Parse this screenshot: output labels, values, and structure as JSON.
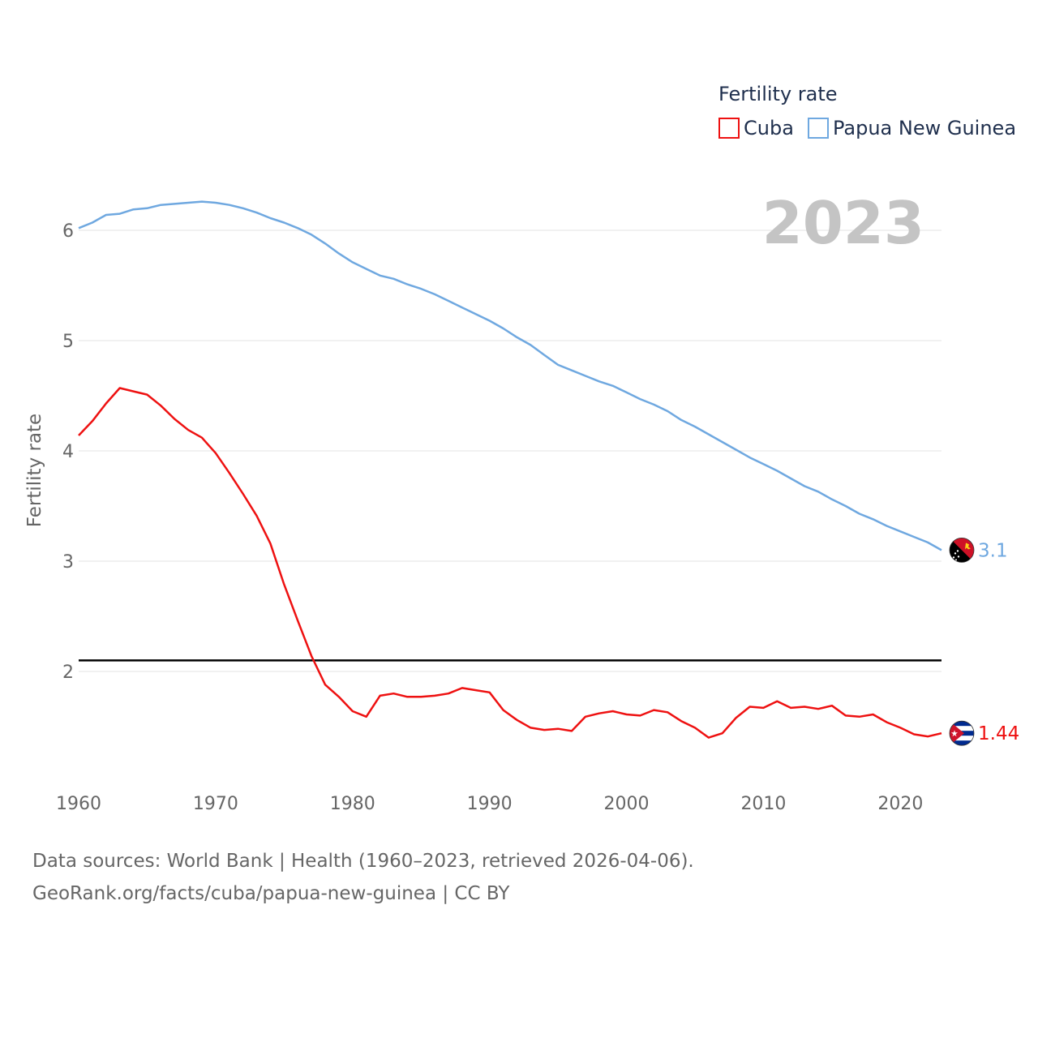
{
  "chart_data": {
    "type": "line",
    "title": "Fertility rate",
    "ylabel": "Fertility rate",
    "xlabel": "",
    "year_display": "2023",
    "xlim": [
      1960,
      2023
    ],
    "ylim": [
      1.0,
      6.5
    ],
    "x_ticks": [
      1960,
      1970,
      1980,
      1990,
      2000,
      2010,
      2020
    ],
    "y_ticks": [
      2,
      3,
      4,
      5,
      6
    ],
    "grid": true,
    "legend_position": "top-right",
    "reference_line": {
      "value": 2.1,
      "color": "#000000"
    },
    "x": [
      1960,
      1961,
      1962,
      1963,
      1964,
      1965,
      1966,
      1967,
      1968,
      1969,
      1970,
      1971,
      1972,
      1973,
      1974,
      1975,
      1976,
      1977,
      1978,
      1979,
      1980,
      1981,
      1982,
      1983,
      1984,
      1985,
      1986,
      1987,
      1988,
      1989,
      1990,
      1991,
      1992,
      1993,
      1994,
      1995,
      1996,
      1997,
      1998,
      1999,
      2000,
      2001,
      2002,
      2003,
      2004,
      2005,
      2006,
      2007,
      2008,
      2009,
      2010,
      2011,
      2012,
      2013,
      2014,
      2015,
      2016,
      2017,
      2018,
      2019,
      2020,
      2021,
      2022,
      2023
    ],
    "series": [
      {
        "name": "Cuba",
        "color": "#ee1111",
        "end_label": "1.44",
        "flag": "cuba-flag-icon",
        "values": [
          4.14,
          4.27,
          4.43,
          4.57,
          4.54,
          4.51,
          4.41,
          4.29,
          4.19,
          4.12,
          3.98,
          3.8,
          3.61,
          3.41,
          3.16,
          2.79,
          2.46,
          2.14,
          1.88,
          1.77,
          1.64,
          1.59,
          1.78,
          1.8,
          1.77,
          1.77,
          1.78,
          1.8,
          1.85,
          1.83,
          1.81,
          1.65,
          1.56,
          1.49,
          1.47,
          1.48,
          1.46,
          1.59,
          1.62,
          1.64,
          1.61,
          1.6,
          1.65,
          1.63,
          1.55,
          1.49,
          1.4,
          1.44,
          1.58,
          1.68,
          1.67,
          1.73,
          1.67,
          1.68,
          1.66,
          1.69,
          1.6,
          1.59,
          1.61,
          1.54,
          1.49,
          1.43,
          1.41,
          1.44
        ]
      },
      {
        "name": "Papua New Guinea",
        "color": "#6fa8e0",
        "end_label": "3.1",
        "flag": "papua-new-guinea-flag-icon",
        "values": [
          6.02,
          6.07,
          6.14,
          6.15,
          6.19,
          6.2,
          6.23,
          6.24,
          6.25,
          6.26,
          6.25,
          6.23,
          6.2,
          6.16,
          6.11,
          6.07,
          6.02,
          5.96,
          5.88,
          5.79,
          5.71,
          5.65,
          5.59,
          5.56,
          5.51,
          5.47,
          5.42,
          5.36,
          5.3,
          5.24,
          5.18,
          5.11,
          5.03,
          4.96,
          4.87,
          4.78,
          4.73,
          4.68,
          4.63,
          4.59,
          4.53,
          4.47,
          4.42,
          4.36,
          4.28,
          4.22,
          4.15,
          4.08,
          4.01,
          3.94,
          3.88,
          3.82,
          3.75,
          3.68,
          3.63,
          3.56,
          3.5,
          3.43,
          3.38,
          3.32,
          3.27,
          3.22,
          3.17,
          3.1
        ]
      }
    ]
  },
  "source": {
    "line1": "Data sources: World Bank | Health (1960–2023, retrieved 2026-04-06).",
    "line2": "GeoRank.org/facts/cuba/papua-new-guinea | CC BY"
  }
}
